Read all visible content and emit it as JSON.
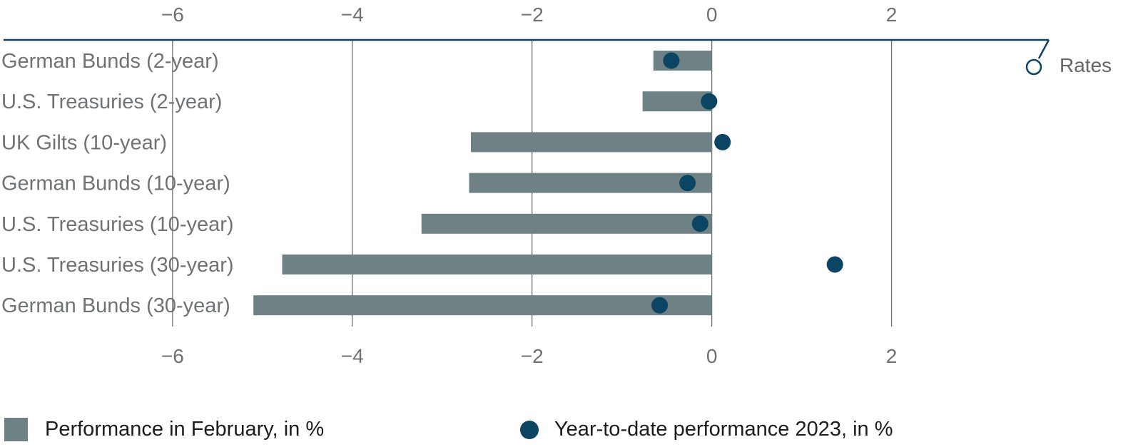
{
  "chart_data": {
    "type": "bar",
    "orientation": "horizontal",
    "tag": "Rates",
    "categories": [
      "German Bunds (2-year)",
      "U.S. Treasuries (2-year)",
      "UK Gilts (10-year)",
      "German Bunds (10-year)",
      "U.S. Treasuries (10-year)",
      "U.S. Treasuries (30-year)",
      "German Bunds (30-year)"
    ],
    "series": [
      {
        "name": "Performance in February, in %",
        "type": "bar",
        "values": [
          -0.65,
          -0.77,
          -2.68,
          -2.7,
          -3.23,
          -4.78,
          -5.1
        ]
      },
      {
        "name": "Year-to-date performance 2023, in %",
        "type": "dot",
        "values": [
          -0.45,
          -0.03,
          0.12,
          -0.27,
          -0.13,
          1.37,
          -0.58
        ]
      }
    ],
    "xticks": [
      "−6",
      "−4",
      "−2",
      "0",
      "2"
    ],
    "xtick_values": [
      -6,
      -4,
      -2,
      0,
      2
    ],
    "xlim": [
      -7.88,
      3.75
    ],
    "grid": true,
    "legend_position": "bottom",
    "colors": {
      "bar": "#6e8184",
      "dot": "#0c4464",
      "axis": "#0c4464",
      "grid": "#707070"
    }
  }
}
